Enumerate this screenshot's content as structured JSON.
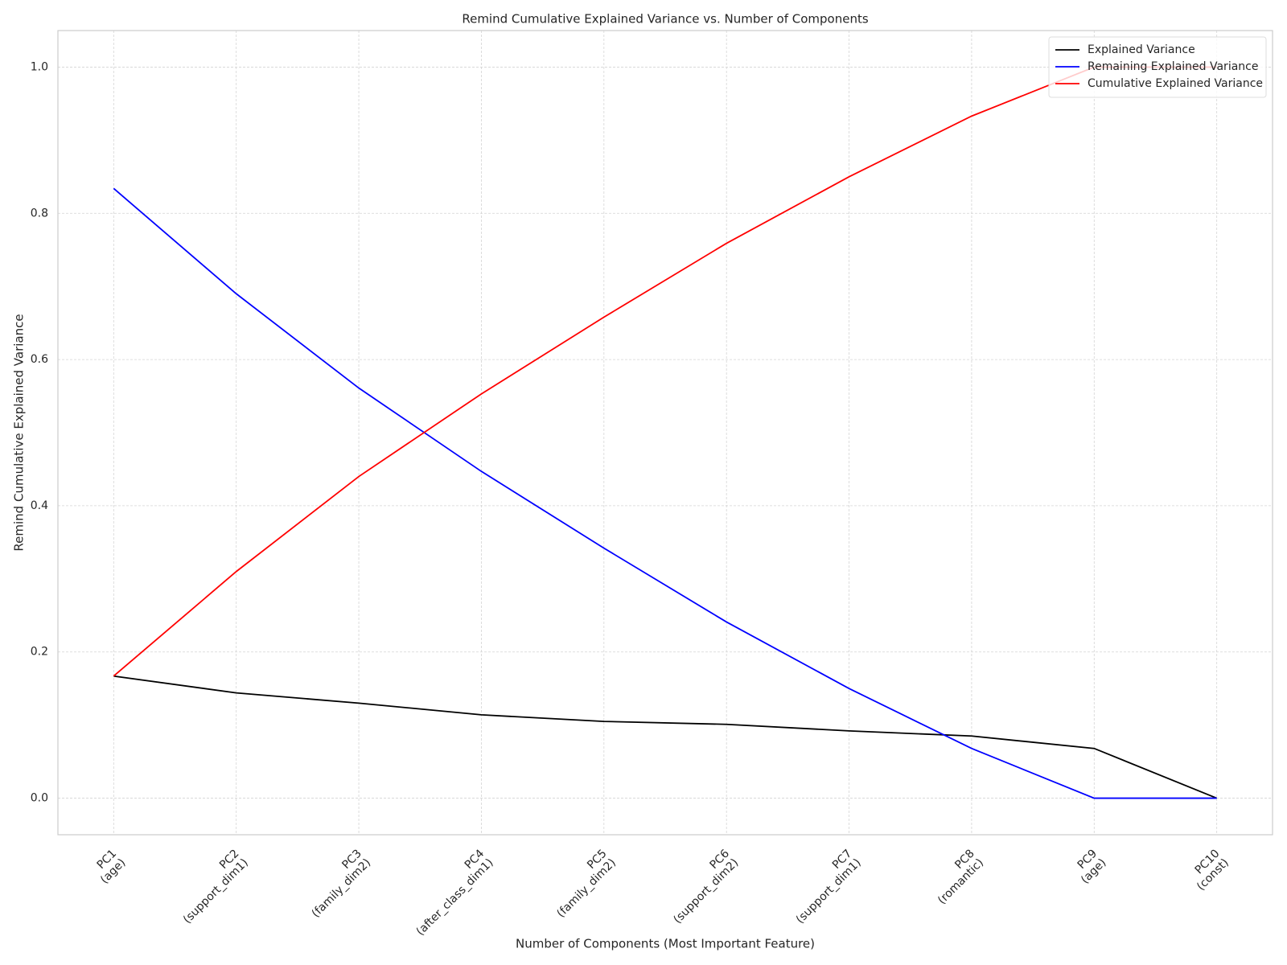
{
  "chart_data": {
    "type": "line",
    "title": "Remind Cumulative Explained Variance vs. Number of Components",
    "x_label": "Number of Components (Most Important Feature)",
    "y_label": "Remind Cumulative Explained Variance",
    "categories": [
      "PC1\n(age)",
      "PC2\n(support_dim1)",
      "PC3\n(family_dim2)",
      "PC4\n(after_class_dim1)",
      "PC5\n(family_dim2)",
      "PC6\n(support_dim2)",
      "PC7\n(support_dim1)",
      "PC8\n(romantic)",
      "PC9\n(age)",
      "PC10\n(const)"
    ],
    "series": [
      {
        "name": "Explained Variance",
        "color": "#000000",
        "values": [
          0.167,
          0.144,
          0.13,
          0.114,
          0.105,
          0.101,
          0.092,
          0.085,
          0.068,
          0.0
        ]
      },
      {
        "name": "Remaining Explained Variance",
        "color": "#0000ff",
        "values": [
          0.834,
          0.69,
          0.561,
          0.447,
          0.342,
          0.241,
          0.15,
          0.068,
          0.0,
          0.0
        ]
      },
      {
        "name": "Cumulative Explained Variance",
        "color": "#ff0000",
        "values": [
          0.167,
          0.31,
          0.44,
          0.553,
          0.658,
          0.759,
          0.85,
          0.933,
          1.0,
          1.0
        ]
      }
    ],
    "ylim": [
      -0.05,
      1.05
    ],
    "yticks": [
      {
        "value": 0,
        "label": "0.0"
      },
      0.2,
      0.4,
      0.6,
      0.8,
      {
        "value": 1,
        "label": "1.0"
      }
    ],
    "grid": true,
    "legend": "upper right"
  }
}
